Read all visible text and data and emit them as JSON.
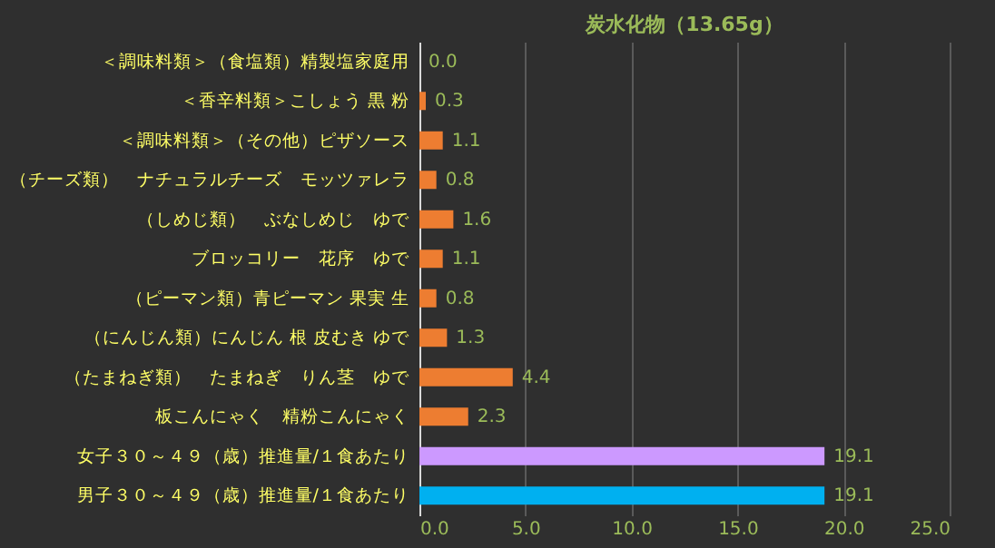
{
  "chart_data": {
    "type": "bar",
    "orientation": "horizontal",
    "title": "炭水化物（13.65g）",
    "categories": [
      "＜調味料類＞（食塩類）精製塩家庭用",
      "＜香辛料類＞こしょう 黒 粉",
      "＜調味料類＞（その他）ピザソース",
      "（チーズ類）　ナチュラルチーズ　モッツァレラ",
      "（しめじ類）　ぶなしめじ　ゆで",
      "ブロッコリー　花序　ゆで",
      "（ピーマン類）青ピーマン 果実 生",
      "（にんじん類）にんじん 根 皮むき ゆで",
      "（たまねぎ類）　たまねぎ　りん茎　ゆで",
      "板こんにゃく　精粉こんにゃく",
      "女子３０～４９（歳）推進量/１食あたり",
      "男子３０～４９（歳）推進量/１食あたり"
    ],
    "values": [
      0.0,
      0.3,
      1.1,
      0.8,
      1.6,
      1.1,
      0.8,
      1.3,
      4.4,
      2.3,
      19.1,
      19.1
    ],
    "value_labels": [
      "0.0",
      "0.3",
      "1.1",
      "0.8",
      "1.6",
      "1.1",
      "0.8",
      "1.3",
      "4.4",
      "2.3",
      "19.1",
      "19.1"
    ],
    "colors": [
      "#ed7d31",
      "#ed7d31",
      "#ed7d31",
      "#ed7d31",
      "#ed7d31",
      "#ed7d31",
      "#ed7d31",
      "#ed7d31",
      "#ed7d31",
      "#ed7d31",
      "#cc99ff",
      "#00b0f0"
    ],
    "xlim": [
      0,
      25
    ],
    "xticks": [
      {
        "value": 0,
        "label": "0.0"
      },
      {
        "value": 5,
        "label": "5.0"
      },
      {
        "value": 10,
        "label": "10.0"
      },
      {
        "value": 15,
        "label": "15.0"
      },
      {
        "value": 20,
        "label": "20.0"
      },
      {
        "value": 25,
        "label": "25.0"
      }
    ],
    "grid": "x",
    "legend": false
  }
}
